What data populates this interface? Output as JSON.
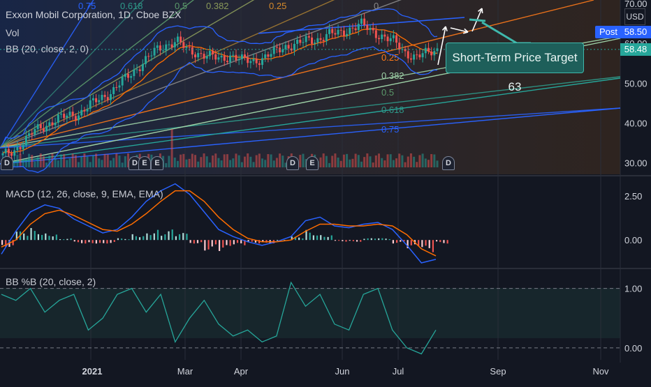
{
  "header": {
    "symbol_title": "Exxon Mobil Corporation, 1D, Cboe BZX",
    "vol_label": "Vol",
    "bb_label": "BB (20, close, 2, 0)",
    "currency": "USD",
    "post_label": "Post",
    "post_price": "58.50",
    "last_price": "58.48"
  },
  "annotation": {
    "callout_text": "Short-Term Price Target 63"
  },
  "events": [
    "D",
    "D",
    "E",
    "D",
    "E",
    "D",
    "E"
  ],
  "colors": {
    "background": "#131722",
    "up": "#26a69a",
    "down": "#ef5350",
    "macd_line": "#2962ff",
    "signal_line": "#ff6d00",
    "bb_line": "#2962ff",
    "pctb_line": "#26a69a",
    "post_tag": "#2962ff",
    "last_tag": "#26a69a"
  },
  "chart_data": [
    {
      "type": "candlestick",
      "title": "Exxon Mobil Corporation, 1D, Cboe BZX",
      "ylabel": "USD",
      "ylim": [
        28,
        70
      ],
      "y_ticks": [
        "70.00",
        "60.00",
        "50.00",
        "40.00",
        "30.00"
      ],
      "x_ticks": [
        "2021",
        "Mar",
        "Apr",
        "Jun",
        "Jul",
        "Sep",
        "Nov"
      ],
      "close_series": [
        31.8,
        33.0,
        35.5,
        38.2,
        39.5,
        41.0,
        41.8,
        42.3,
        44.5,
        46.2,
        47.8,
        50.5,
        52.8,
        55.5,
        58.0,
        59.5,
        60.8,
        58.2,
        57.5,
        56.8,
        56.0,
        57.0,
        55.8,
        55.5,
        56.3,
        57.8,
        59.2,
        59.8,
        60.7,
        61.0,
        62.3,
        62.5,
        63.7,
        64.8,
        63.0,
        61.7,
        60.5,
        57.8,
        56.5,
        57.5,
        58.5
      ],
      "annotation_levels": {
        "fib_fan_labels": [
          "0.75",
          "0.618",
          "0.5",
          "0.382",
          "0.25",
          "0"
        ],
        "fib_lower_labels": [
          "0.25",
          "0.382",
          "0.5",
          "0.618",
          "0.75"
        ]
      },
      "price_target": 63,
      "post_price": 58.5,
      "last_price": 58.48
    },
    {
      "type": "line",
      "title": "MACD (12, 26, close, 9, EMA, EMA)",
      "y_ticks": [
        "2.50",
        "0.00"
      ],
      "ylim": [
        -1.5,
        3.5
      ],
      "series": [
        {
          "name": "MACD",
          "values": [
            -0.8,
            0.5,
            1.6,
            2.0,
            1.8,
            1.2,
            0.8,
            0.4,
            0.6,
            1.3,
            2.2,
            2.8,
            3.2,
            2.6,
            1.6,
            0.6,
            0.2,
            -0.1,
            -0.3,
            -0.1,
            0.2,
            1.1,
            1.3,
            0.8,
            0.7,
            0.9,
            1.0,
            0.6,
            -0.3,
            -1.3,
            -1.1
          ]
        },
        {
          "name": "Signal",
          "values": [
            -0.4,
            0.0,
            0.9,
            1.5,
            1.7,
            1.4,
            1.0,
            0.6,
            0.5,
            0.9,
            1.5,
            2.2,
            2.8,
            2.8,
            2.2,
            1.3,
            0.6,
            0.1,
            -0.1,
            -0.1,
            0.0,
            0.5,
            0.9,
            0.9,
            0.8,
            0.8,
            0.9,
            0.8,
            0.3,
            -0.5,
            -0.9
          ]
        }
      ],
      "histogram": [
        -0.4,
        0.5,
        0.7,
        0.5,
        0.1,
        -0.2,
        -0.2,
        -0.2,
        0.1,
        0.4,
        0.7,
        0.6,
        0.4,
        -0.2,
        -0.6,
        -0.7,
        -0.4,
        -0.2,
        -0.2,
        0.0,
        0.2,
        0.6,
        0.4,
        -0.1,
        -0.1,
        0.1,
        0.1,
        -0.2,
        -0.6,
        -0.8,
        -0.2
      ]
    },
    {
      "type": "line",
      "title": "BB %B (20, close, 2)",
      "y_ticks": [
        "1.00",
        "0.00"
      ],
      "ylim": [
        -0.2,
        1.3
      ],
      "series": [
        {
          "name": "%B",
          "values": [
            0.9,
            0.8,
            1.0,
            0.6,
            0.8,
            0.9,
            0.3,
            0.5,
            0.9,
            1.0,
            0.6,
            0.9,
            0.1,
            0.5,
            0.8,
            0.4,
            0.2,
            0.3,
            0.1,
            0.2,
            1.1,
            0.7,
            0.9,
            0.4,
            0.3,
            0.9,
            1.0,
            0.3,
            0.0,
            -0.1,
            0.3
          ]
        }
      ]
    }
  ]
}
